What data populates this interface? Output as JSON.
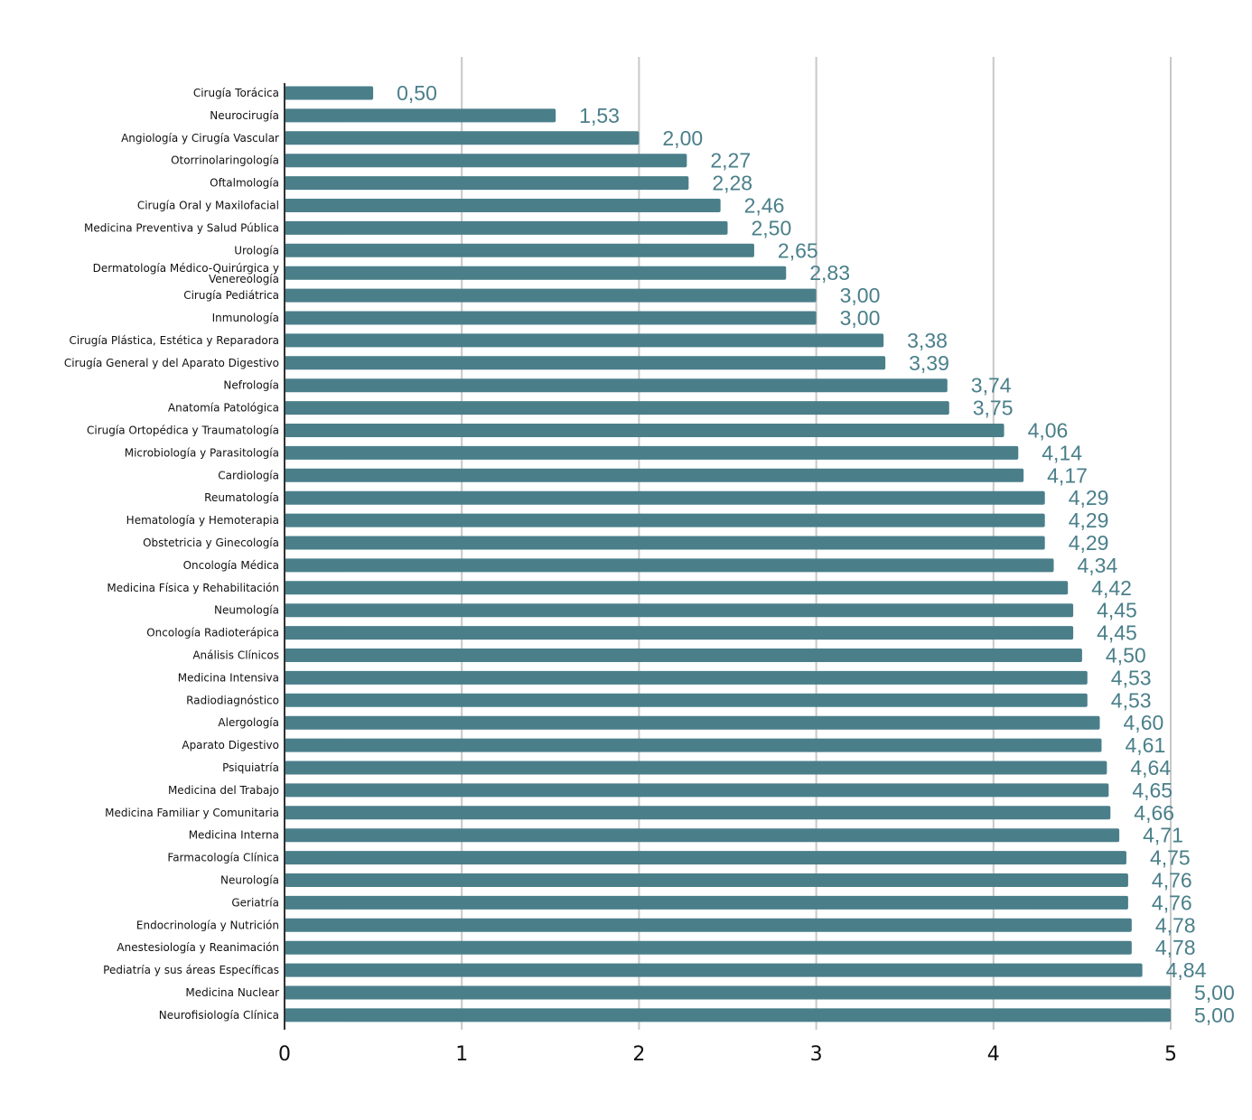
{
  "chart_data": {
    "type": "bar",
    "orientation": "horizontal",
    "title": "",
    "xlabel": "",
    "ylabel": "",
    "xlim": [
      0,
      5
    ],
    "ticks": [
      0,
      1,
      2,
      3,
      4,
      5
    ],
    "tick_labels": [
      "0",
      "1",
      "2",
      "3",
      "4",
      "5"
    ],
    "grid": true,
    "bar_color": "#4a7f8a",
    "label_color": "#4a7f8a",
    "categories": [
      "Cirugía Torácica",
      "Neurocirugía",
      "Angiología y Cirugía Vascular",
      "Otorrinolaringología",
      "Oftalmología",
      "Cirugía Oral y Maxilofacial",
      "Medicina Preventiva y Salud Pública",
      "Urología",
      "Dermatología Médico-Quirúrgica y Venereología",
      "Cirugía Pediátrica",
      "Inmunología",
      "Cirugía Plástica, Estética y Reparadora",
      "Cirugía General y del Aparato Digestivo",
      "Nefrología",
      "Anatomía Patológica",
      "Cirugía Ortopédica y Traumatología",
      "Microbiología y Parasitología",
      "Cardiología",
      "Reumatología",
      "Hematología y Hemoterapia",
      "Obstetricia y Ginecología",
      "Oncología Médica",
      "Medicina Física y Rehabilitación",
      "Neumología",
      "Oncología Radioterápica",
      "Análisis Clínicos",
      "Medicina Intensiva",
      "Radiodiagnóstico",
      "Alergología",
      "Aparato Digestivo",
      "Psiquiatría",
      "Medicina del Trabajo",
      "Medicina Familiar y Comunitaria",
      "Medicina Interna",
      "Farmacología Clínica",
      "Neurología",
      "Geriatría",
      "Endocrinología y Nutrición",
      "Anestesiología y Reanimación",
      "Pediatría y sus áreas Específicas",
      "Medicina Nuclear",
      "Neurofisiología Clínica"
    ],
    "values": [
      0.5,
      1.53,
      2.0,
      2.27,
      2.28,
      2.46,
      2.5,
      2.65,
      2.83,
      3.0,
      3.0,
      3.38,
      3.39,
      3.74,
      3.75,
      4.06,
      4.14,
      4.17,
      4.29,
      4.29,
      4.29,
      4.34,
      4.42,
      4.45,
      4.45,
      4.5,
      4.53,
      4.53,
      4.6,
      4.61,
      4.64,
      4.65,
      4.66,
      4.71,
      4.75,
      4.76,
      4.76,
      4.78,
      4.78,
      4.84,
      5.0,
      5.0
    ],
    "value_labels": [
      "0,50",
      "1,53",
      "2,00",
      "2,27",
      "2,28",
      "2,46",
      "2,50",
      "2,65",
      "2,83",
      "3,00",
      "3,00",
      "3,38",
      "3,39",
      "3,74",
      "3,75",
      "4,06",
      "4,14",
      "4,17",
      "4,29",
      "4,29",
      "4,29",
      "4,34",
      "4,42",
      "4,45",
      "4,45",
      "4,50",
      "4,53",
      "4,53",
      "4,60",
      "4,61",
      "4,64",
      "4,65",
      "4,66",
      "4,71",
      "4,75",
      "4,76",
      "4,76",
      "4,78",
      "4,78",
      "4,84",
      "5,00",
      "5,00"
    ]
  }
}
